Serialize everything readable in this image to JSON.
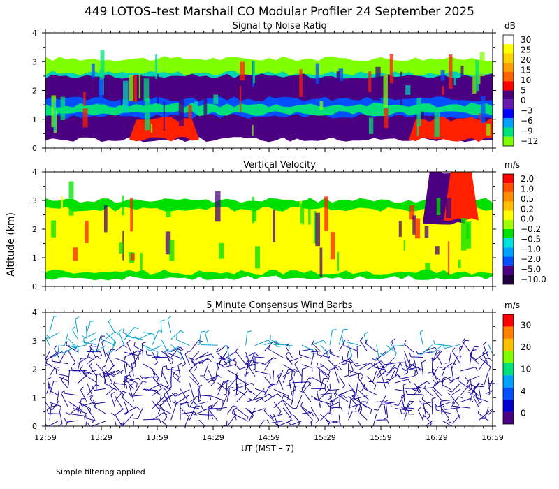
{
  "title": "449 LOTOS–test Marshall CO Modular Profiler 24 September 2025",
  "ylabel": "Altitude (km)",
  "xlabel": "UT  (MST – 7)",
  "footnote": "Simple filtering applied",
  "chart_data": [
    {
      "type": "heatmap",
      "title": "Signal to Noise Ratio",
      "unit": "dB",
      "yticks": [
        "0",
        "1",
        "2",
        "3",
        "4"
      ],
      "ylim": [
        0,
        4
      ],
      "colorbar": {
        "labels": [
          "30",
          "25",
          "20",
          "15",
          "10",
          "5",
          "0",
          "−3",
          "−6",
          "−9",
          "−12"
        ],
        "colors": [
          "#ffffff",
          "#ffff00",
          "#ffd200",
          "#ffa000",
          "#ff6000",
          "#ff0000",
          "#4a0080",
          "#6a1ab0",
          "#0000ff",
          "#00a0ff",
          "#00e07a",
          "#80ff00"
        ]
      },
      "layers": [
        {
          "alt": [
            2.3,
            3.1
          ],
          "color": "#80ff00"
        },
        {
          "alt": [
            2.1,
            2.6
          ],
          "color": "#00d2b4"
        },
        {
          "alt": [
            0.3,
            2.5
          ],
          "color": "#4a0080"
        },
        {
          "alt": [
            1.1,
            1.7
          ],
          "color": "#0050ff"
        },
        {
          "alt": [
            1.2,
            1.5
          ],
          "color": "#00e07a"
        },
        {
          "alt": [
            0.3,
            1.0
          ],
          "color": "#ff2000"
        }
      ]
    },
    {
      "type": "heatmap",
      "title": "Vertical Velocity",
      "unit": "m/s",
      "yticks": [
        "0",
        "1",
        "2",
        "3",
        "4"
      ],
      "ylim": [
        0,
        4
      ],
      "colorbar": {
        "labels": [
          "2.0",
          "1.0",
          "0.5",
          "0.2",
          "0.0",
          "−0.2",
          "−0.5",
          "−1.0",
          "−2.0",
          "−5.0",
          "−10.0"
        ],
        "colors": [
          "#ff0000",
          "#ff5000",
          "#ff8c00",
          "#ffc000",
          "#ffff00",
          "#a0ff00",
          "#00e000",
          "#00e0e0",
          "#00a0ff",
          "#0050ff",
          "#4a0080",
          "#200040"
        ]
      },
      "layers": [
        {
          "alt": [
            0.3,
            3.0
          ],
          "color": "#00e000"
        },
        {
          "alt": [
            0.5,
            2.7
          ],
          "color": "#ffff00"
        },
        {
          "alt": [
            2.2,
            4.0
          ],
          "color": "#4a0080"
        },
        {
          "alt": [
            2.3,
            4.0
          ],
          "color": "#ff2000"
        }
      ]
    },
    {
      "type": "scatter",
      "title": "5 Minute Consensus Wind Barbs",
      "unit": "m/s",
      "yticks": [
        "0",
        "1",
        "2",
        "3",
        "4"
      ],
      "ylim": [
        0,
        4
      ],
      "colorbar": {
        "labels": [
          "30",
          "20",
          "10",
          "4",
          "0"
        ],
        "colors": [
          "#ff0000",
          "#ff8000",
          "#ffc000",
          "#80ff00",
          "#00e07a",
          "#00a0ff",
          "#0050ff",
          "#0000cc",
          "#4a0080"
        ]
      },
      "barb_color": "#1a0aa0",
      "barb_color_upper": "#00a0d0",
      "altitude_range": [
        0.2,
        3.4
      ]
    }
  ],
  "xticks": [
    "12:59",
    "13:29",
    "13:59",
    "14:29",
    "14:59",
    "15:29",
    "15:59",
    "16:29",
    "16:59"
  ]
}
